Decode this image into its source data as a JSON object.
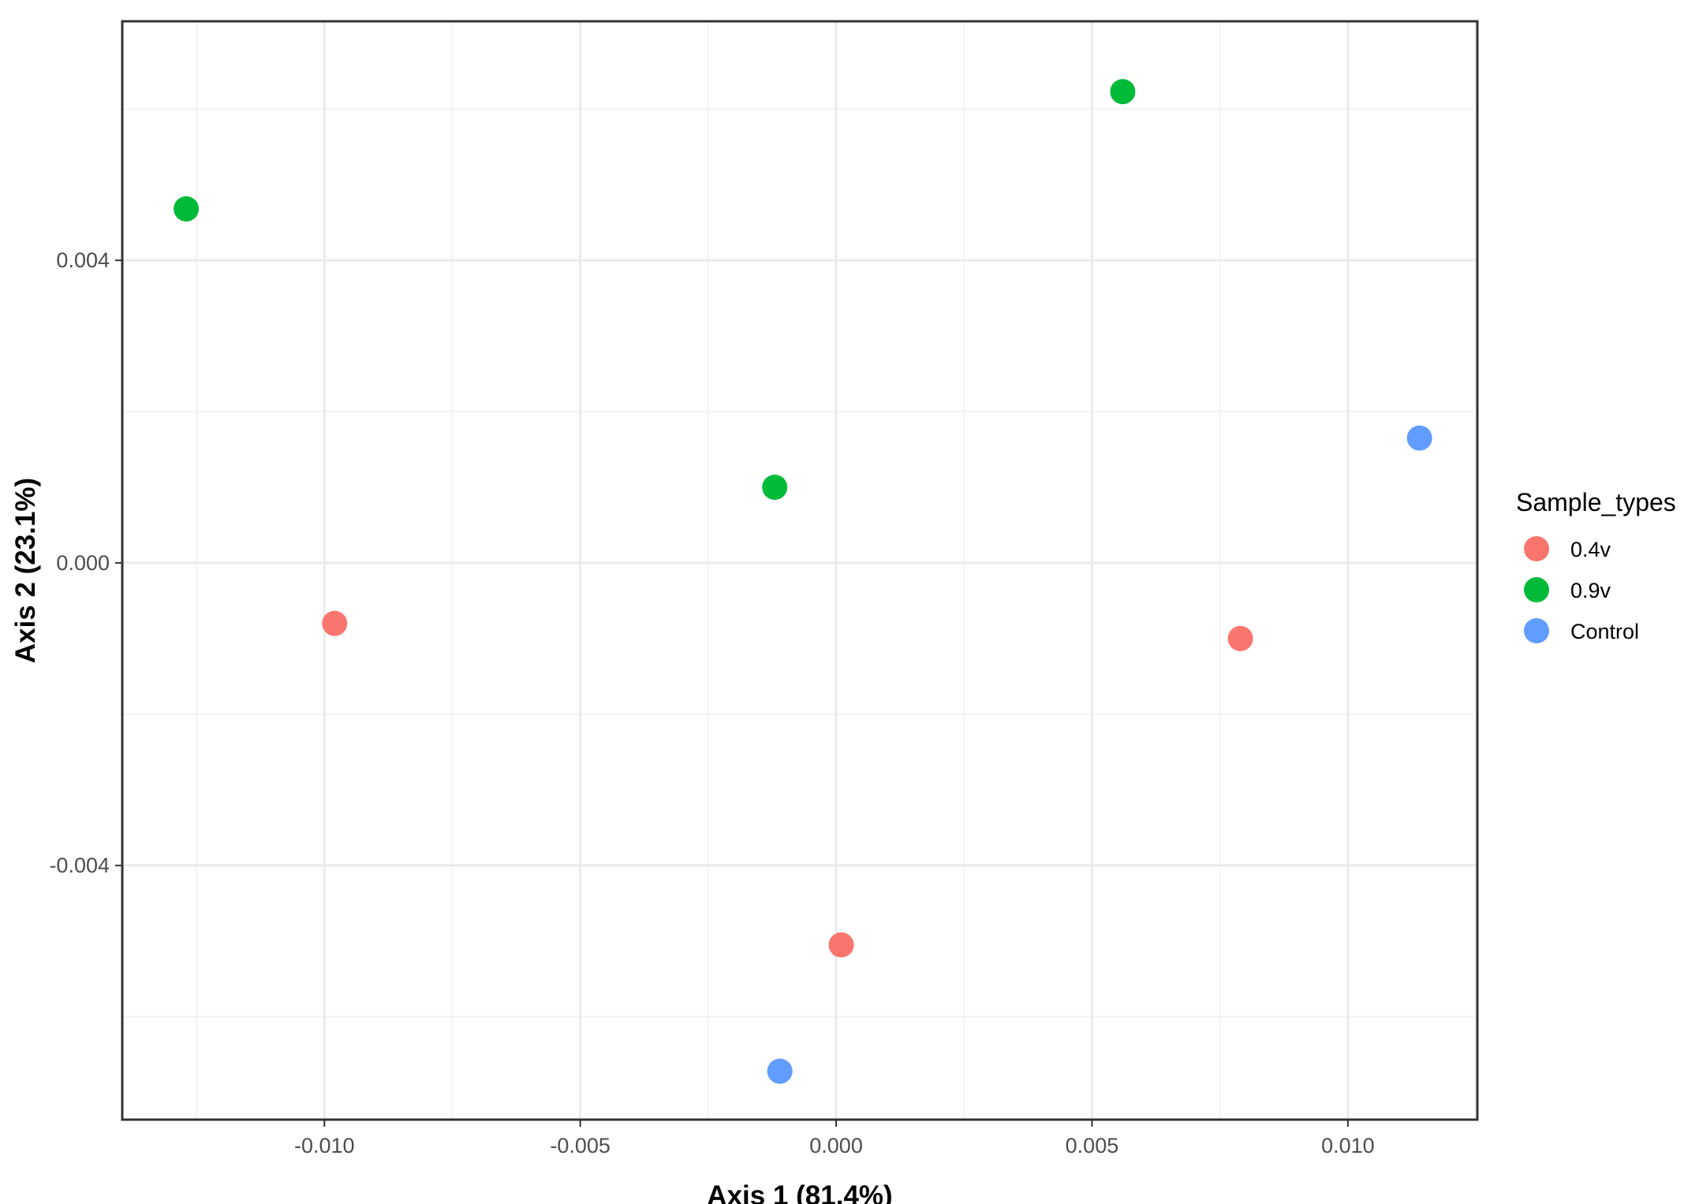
{
  "chart_data": {
    "type": "scatter",
    "title": "",
    "xlabel": "Axis 1  (81.4%)",
    "ylabel": "Axis 2  (23.1%)",
    "xlim": [
      -0.01395,
      0.01253
    ],
    "ylim": [
      -0.00736,
      0.00716
    ],
    "x_ticks": [
      -0.01,
      -0.005,
      0.0,
      0.005,
      0.01
    ],
    "x_tick_labels": [
      "-0.010",
      "-0.005",
      "0.000",
      "0.005",
      "0.010"
    ],
    "y_ticks": [
      -0.004,
      0.0,
      0.004
    ],
    "y_tick_labels": [
      "-0.004",
      "0.000",
      "0.004"
    ],
    "grid": true,
    "legend": {
      "title": "Sample_types",
      "position": "right"
    },
    "series": [
      {
        "name": "0.4v",
        "color": "#F8766D",
        "points": [
          {
            "x": -0.0098,
            "y": -0.0008
          },
          {
            "x": 0.0001,
            "y": -0.00505
          },
          {
            "x": 0.0079,
            "y": -0.001
          }
        ]
      },
      {
        "name": "0.9v",
        "color": "#00BA38",
        "points": [
          {
            "x": -0.0127,
            "y": 0.00468
          },
          {
            "x": -0.0012,
            "y": 0.001
          },
          {
            "x": 0.0056,
            "y": 0.00623
          }
        ]
      },
      {
        "name": "Control",
        "color": "#619CFF",
        "points": [
          {
            "x": -0.0011,
            "y": -0.00672
          },
          {
            "x": 0.0114,
            "y": 0.00165
          }
        ]
      }
    ]
  }
}
